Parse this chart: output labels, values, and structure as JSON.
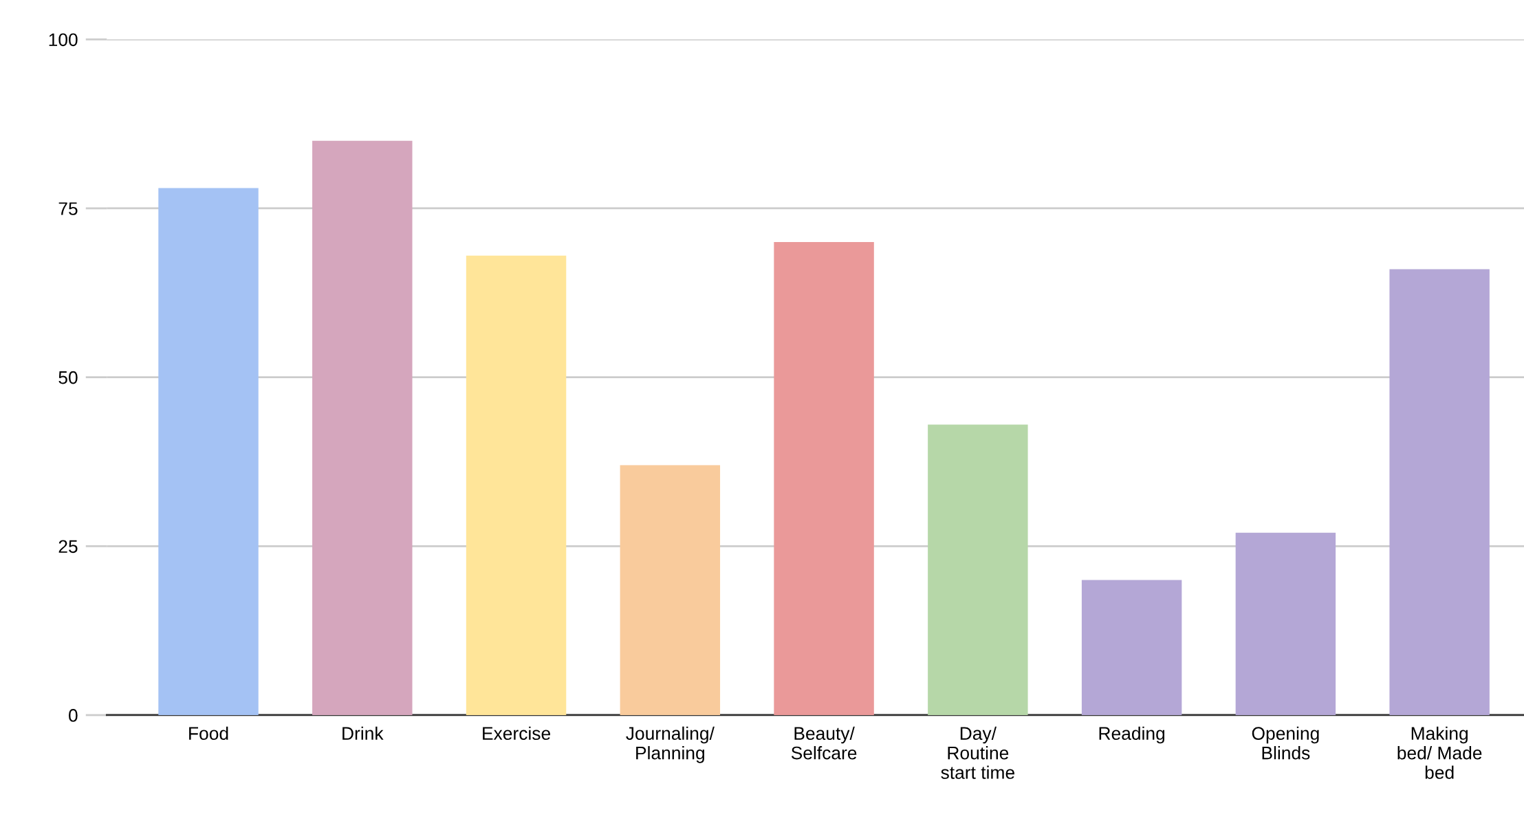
{
  "chart_data": {
    "type": "bar",
    "categories": [
      "Food",
      "Drink",
      "Exercise",
      "Journaling/ Planning",
      "Beauty/ Selfcare",
      "Day/ Routine start time",
      "Reading",
      "Opening Blinds",
      "Making bed/ Made bed"
    ],
    "values": [
      78,
      85,
      68,
      37,
      70,
      43,
      20,
      27,
      66
    ],
    "colors": [
      "#a4c2f4",
      "#d5a6bd",
      "#ffe599",
      "#f9cb9c",
      "#ea9999",
      "#b6d7a8",
      "#b4a7d6",
      "#b4a7d6",
      "#b4a7d6"
    ],
    "ylim": [
      0,
      100
    ],
    "yticks": [
      0,
      25,
      50,
      75,
      100
    ],
    "grid": "y",
    "legend": false
  }
}
